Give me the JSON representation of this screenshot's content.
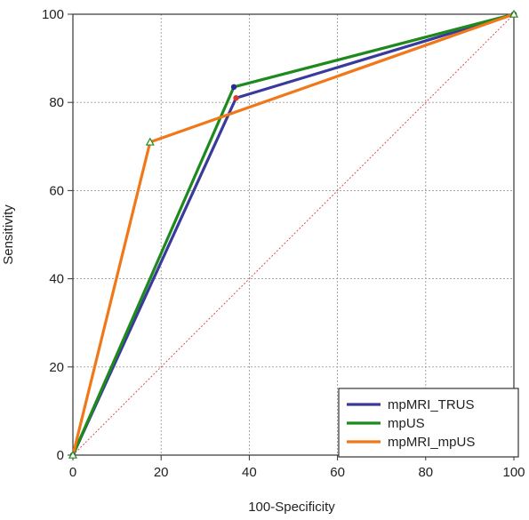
{
  "chart_data": {
    "type": "line",
    "title": "",
    "xlabel": "100-Specificity",
    "ylabel": "Sensitivity",
    "xlim": [
      0,
      100
    ],
    "ylim": [
      0,
      100
    ],
    "x_ticks": [
      0,
      20,
      40,
      60,
      80,
      100
    ],
    "y_ticks": [
      0,
      20,
      40,
      60,
      80,
      100
    ],
    "grid": "dotted",
    "legend_position": "bottom-right",
    "diagonal_reference": true,
    "series": [
      {
        "name": "mpMRI_TRUS",
        "color": "#3a3a9c",
        "marker": "circle",
        "marker_color": "#d63a2a",
        "x": [
          0,
          37,
          100
        ],
        "y": [
          0,
          81,
          100
        ]
      },
      {
        "name": "mpUS",
        "color": "#1e8a1e",
        "marker": "circle",
        "marker_color": "#2a2a9a",
        "x": [
          0,
          36.5,
          100
        ],
        "y": [
          0,
          83.5,
          100
        ]
      },
      {
        "name": "mpMRI_mpUS",
        "color": "#f07818",
        "marker": "triangle",
        "marker_color": "#1e8a1e",
        "x": [
          0,
          17.5,
          100
        ],
        "y": [
          0,
          71,
          100
        ]
      }
    ]
  }
}
